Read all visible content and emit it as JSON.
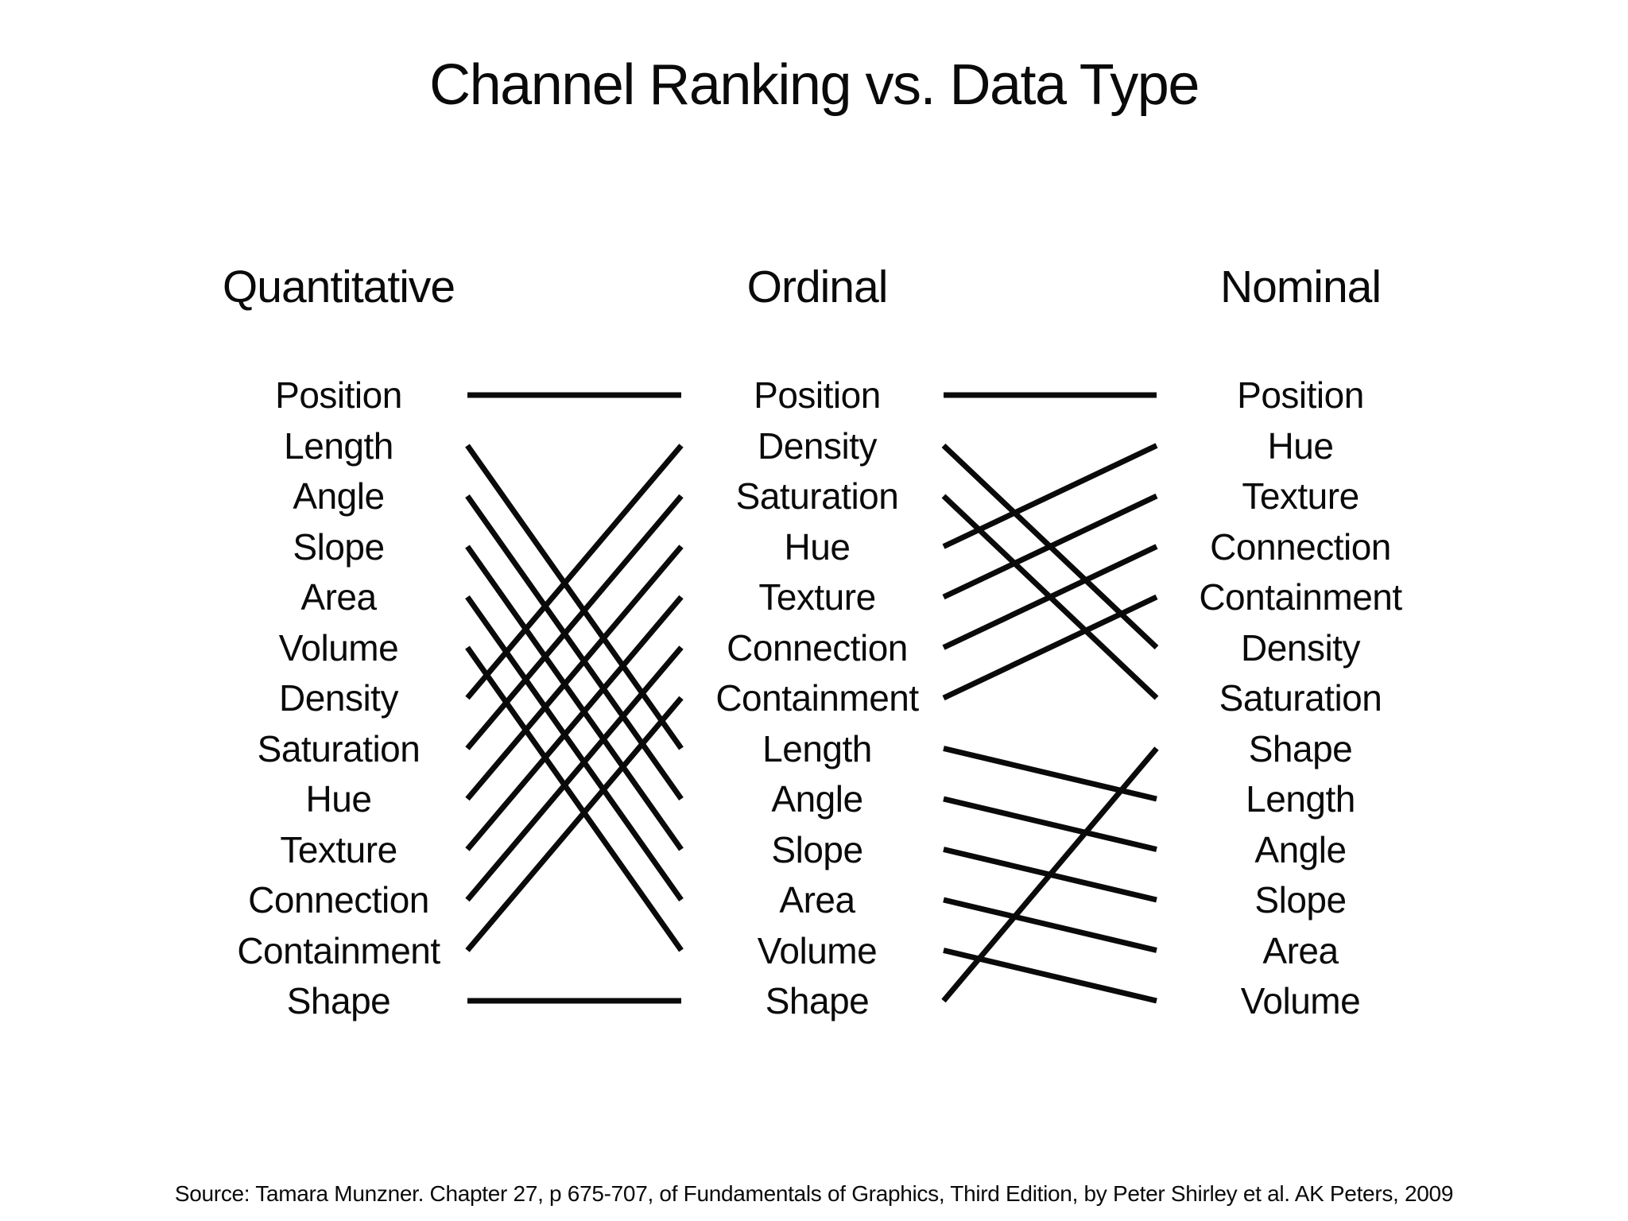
{
  "title": "Channel Ranking vs. Data Type",
  "columns": [
    {
      "header": "Quantitative",
      "channels": [
        "Position",
        "Length",
        "Angle",
        "Slope",
        "Area",
        "Volume",
        "Density",
        "Saturation",
        "Hue",
        "Texture",
        "Connection",
        "Containment",
        "Shape"
      ]
    },
    {
      "header": "Ordinal",
      "channels": [
        "Position",
        "Density",
        "Saturation",
        "Hue",
        "Texture",
        "Connection",
        "Containment",
        "Length",
        "Angle",
        "Slope",
        "Area",
        "Volume",
        "Shape"
      ]
    },
    {
      "header": "Nominal",
      "channels": [
        "Position",
        "Hue",
        "Texture",
        "Connection",
        "Containment",
        "Density",
        "Saturation",
        "Shape",
        "Length",
        "Angle",
        "Slope",
        "Area",
        "Volume"
      ]
    }
  ],
  "source": "Source: Tamara Munzner. Chapter 27, p 675-707, of Fundamentals of Graphics, Third Edition, by Peter Shirley et al. AK Peters, 2009",
  "colors": {
    "text": "#0a0a0a",
    "line": "#0a0a0a",
    "background": "#ffffff"
  }
}
